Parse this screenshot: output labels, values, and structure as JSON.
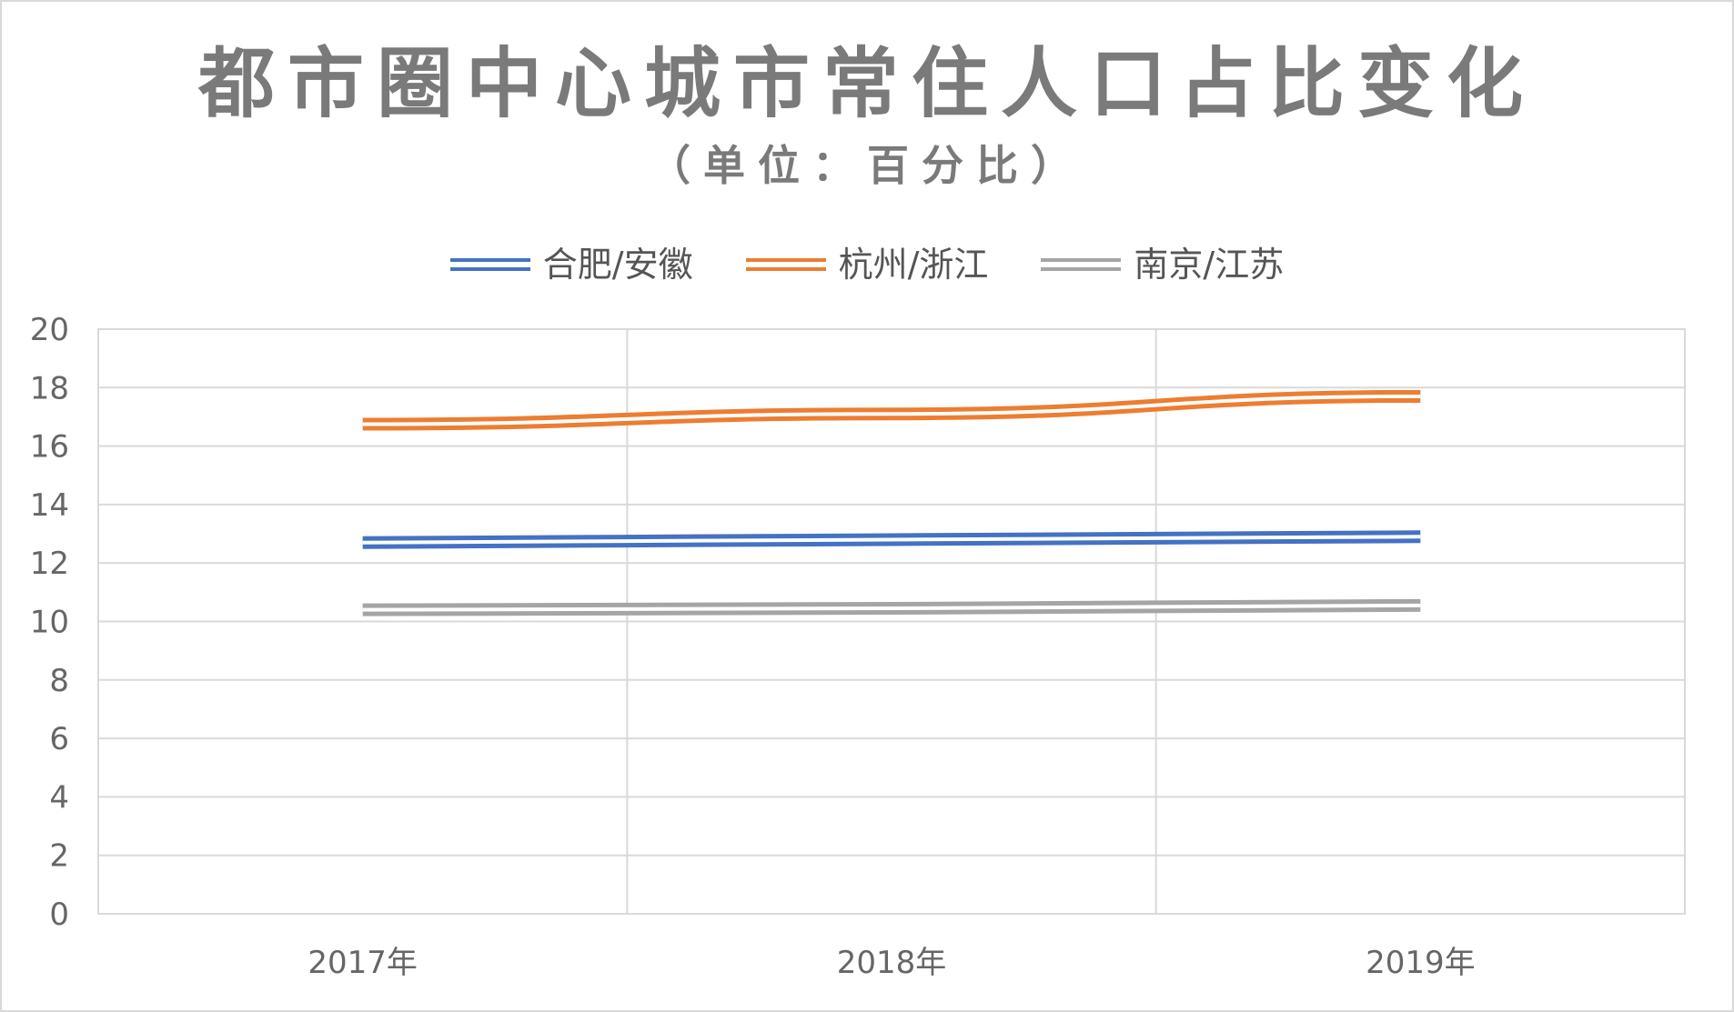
{
  "chart_data": {
    "type": "line",
    "title": "都市圈中心城市常住人口占比变化",
    "subtitle": "（单位：百分比）",
    "categories": [
      "2017年",
      "2018年",
      "2019年"
    ],
    "series": [
      {
        "name": "合肥/安徽",
        "color": "#4472C4",
        "values": [
          12.7,
          12.8,
          12.9
        ]
      },
      {
        "name": "杭州/浙江",
        "color": "#ED7D31",
        "values": [
          16.75,
          17.1,
          17.7
        ]
      },
      {
        "name": "南京/江苏",
        "color": "#A5A5A5",
        "values": [
          10.4,
          10.45,
          10.55
        ]
      }
    ],
    "ylim": [
      0,
      20
    ],
    "yticks": [
      0,
      2,
      4,
      6,
      8,
      10,
      12,
      14,
      16,
      18,
      20
    ],
    "legend_position": "top",
    "grid": true,
    "line_style": "double"
  }
}
